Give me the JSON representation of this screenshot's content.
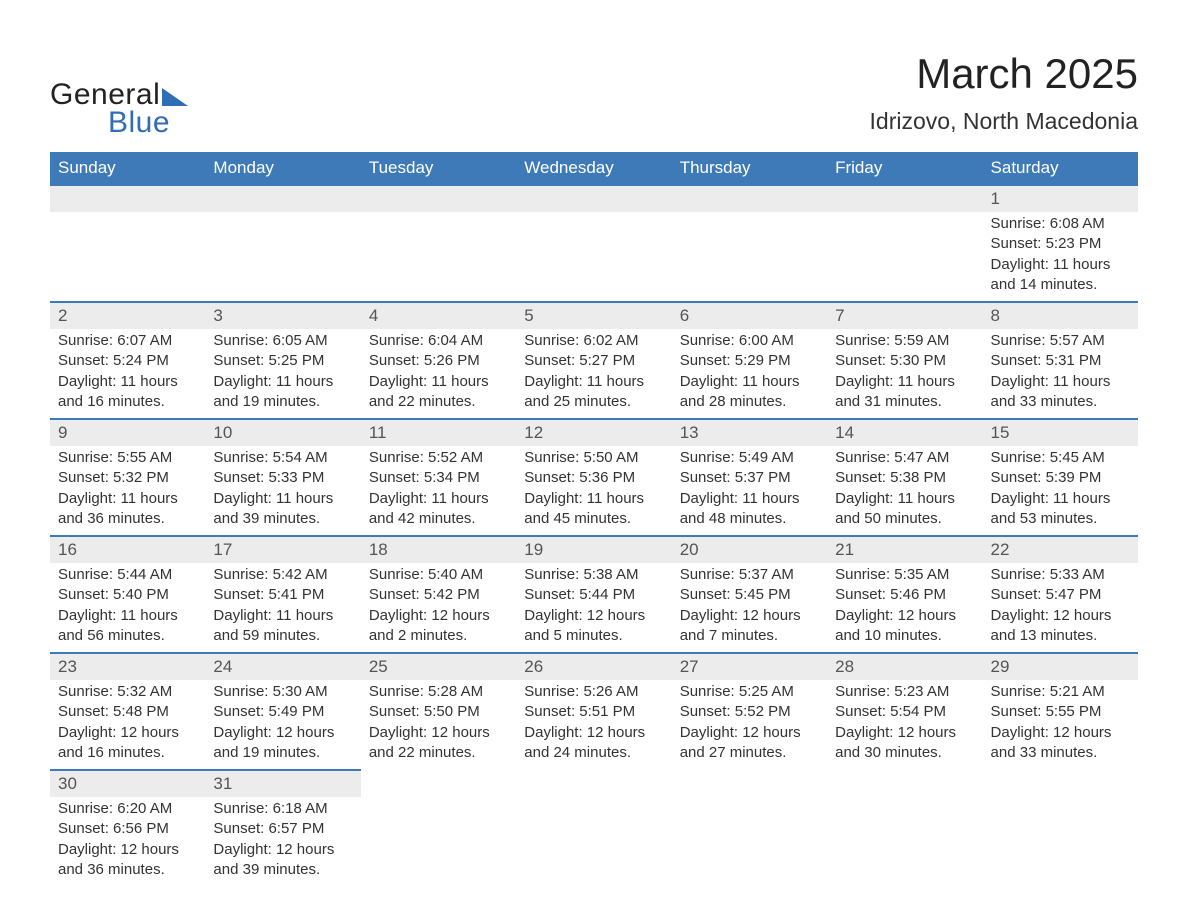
{
  "logo": {
    "text1": "General",
    "text2": "Blue"
  },
  "title": "March 2025",
  "location": "Idrizovo, North Macedonia",
  "colors": {
    "header_bg": "#3f7ab8",
    "header_text": "#ffffff",
    "daynum_bg": "#ececec",
    "row_border": "#3f7ab8",
    "body_text": "#333333",
    "logo_blue": "#2f6eb5"
  },
  "columns": [
    "Sunday",
    "Monday",
    "Tuesday",
    "Wednesday",
    "Thursday",
    "Friday",
    "Saturday"
  ],
  "weeks": [
    [
      null,
      null,
      null,
      null,
      null,
      null,
      {
        "n": "1",
        "sr": "6:08 AM",
        "ss": "5:23 PM",
        "dl": "11 hours and 14 minutes."
      }
    ],
    [
      {
        "n": "2",
        "sr": "6:07 AM",
        "ss": "5:24 PM",
        "dl": "11 hours and 16 minutes."
      },
      {
        "n": "3",
        "sr": "6:05 AM",
        "ss": "5:25 PM",
        "dl": "11 hours and 19 minutes."
      },
      {
        "n": "4",
        "sr": "6:04 AM",
        "ss": "5:26 PM",
        "dl": "11 hours and 22 minutes."
      },
      {
        "n": "5",
        "sr": "6:02 AM",
        "ss": "5:27 PM",
        "dl": "11 hours and 25 minutes."
      },
      {
        "n": "6",
        "sr": "6:00 AM",
        "ss": "5:29 PM",
        "dl": "11 hours and 28 minutes."
      },
      {
        "n": "7",
        "sr": "5:59 AM",
        "ss": "5:30 PM",
        "dl": "11 hours and 31 minutes."
      },
      {
        "n": "8",
        "sr": "5:57 AM",
        "ss": "5:31 PM",
        "dl": "11 hours and 33 minutes."
      }
    ],
    [
      {
        "n": "9",
        "sr": "5:55 AM",
        "ss": "5:32 PM",
        "dl": "11 hours and 36 minutes."
      },
      {
        "n": "10",
        "sr": "5:54 AM",
        "ss": "5:33 PM",
        "dl": "11 hours and 39 minutes."
      },
      {
        "n": "11",
        "sr": "5:52 AM",
        "ss": "5:34 PM",
        "dl": "11 hours and 42 minutes."
      },
      {
        "n": "12",
        "sr": "5:50 AM",
        "ss": "5:36 PM",
        "dl": "11 hours and 45 minutes."
      },
      {
        "n": "13",
        "sr": "5:49 AM",
        "ss": "5:37 PM",
        "dl": "11 hours and 48 minutes."
      },
      {
        "n": "14",
        "sr": "5:47 AM",
        "ss": "5:38 PM",
        "dl": "11 hours and 50 minutes."
      },
      {
        "n": "15",
        "sr": "5:45 AM",
        "ss": "5:39 PM",
        "dl": "11 hours and 53 minutes."
      }
    ],
    [
      {
        "n": "16",
        "sr": "5:44 AM",
        "ss": "5:40 PM",
        "dl": "11 hours and 56 minutes."
      },
      {
        "n": "17",
        "sr": "5:42 AM",
        "ss": "5:41 PM",
        "dl": "11 hours and 59 minutes."
      },
      {
        "n": "18",
        "sr": "5:40 AM",
        "ss": "5:42 PM",
        "dl": "12 hours and 2 minutes."
      },
      {
        "n": "19",
        "sr": "5:38 AM",
        "ss": "5:44 PM",
        "dl": "12 hours and 5 minutes."
      },
      {
        "n": "20",
        "sr": "5:37 AM",
        "ss": "5:45 PM",
        "dl": "12 hours and 7 minutes."
      },
      {
        "n": "21",
        "sr": "5:35 AM",
        "ss": "5:46 PM",
        "dl": "12 hours and 10 minutes."
      },
      {
        "n": "22",
        "sr": "5:33 AM",
        "ss": "5:47 PM",
        "dl": "12 hours and 13 minutes."
      }
    ],
    [
      {
        "n": "23",
        "sr": "5:32 AM",
        "ss": "5:48 PM",
        "dl": "12 hours and 16 minutes."
      },
      {
        "n": "24",
        "sr": "5:30 AM",
        "ss": "5:49 PM",
        "dl": "12 hours and 19 minutes."
      },
      {
        "n": "25",
        "sr": "5:28 AM",
        "ss": "5:50 PM",
        "dl": "12 hours and 22 minutes."
      },
      {
        "n": "26",
        "sr": "5:26 AM",
        "ss": "5:51 PM",
        "dl": "12 hours and 24 minutes."
      },
      {
        "n": "27",
        "sr": "5:25 AM",
        "ss": "5:52 PM",
        "dl": "12 hours and 27 minutes."
      },
      {
        "n": "28",
        "sr": "5:23 AM",
        "ss": "5:54 PM",
        "dl": "12 hours and 30 minutes."
      },
      {
        "n": "29",
        "sr": "5:21 AM",
        "ss": "5:55 PM",
        "dl": "12 hours and 33 minutes."
      }
    ],
    [
      {
        "n": "30",
        "sr": "6:20 AM",
        "ss": "6:56 PM",
        "dl": "12 hours and 36 minutes."
      },
      {
        "n": "31",
        "sr": "6:18 AM",
        "ss": "6:57 PM",
        "dl": "12 hours and 39 minutes."
      },
      null,
      null,
      null,
      null,
      null
    ]
  ],
  "labels": {
    "sunrise": "Sunrise: ",
    "sunset": "Sunset: ",
    "daylight": "Daylight: "
  }
}
